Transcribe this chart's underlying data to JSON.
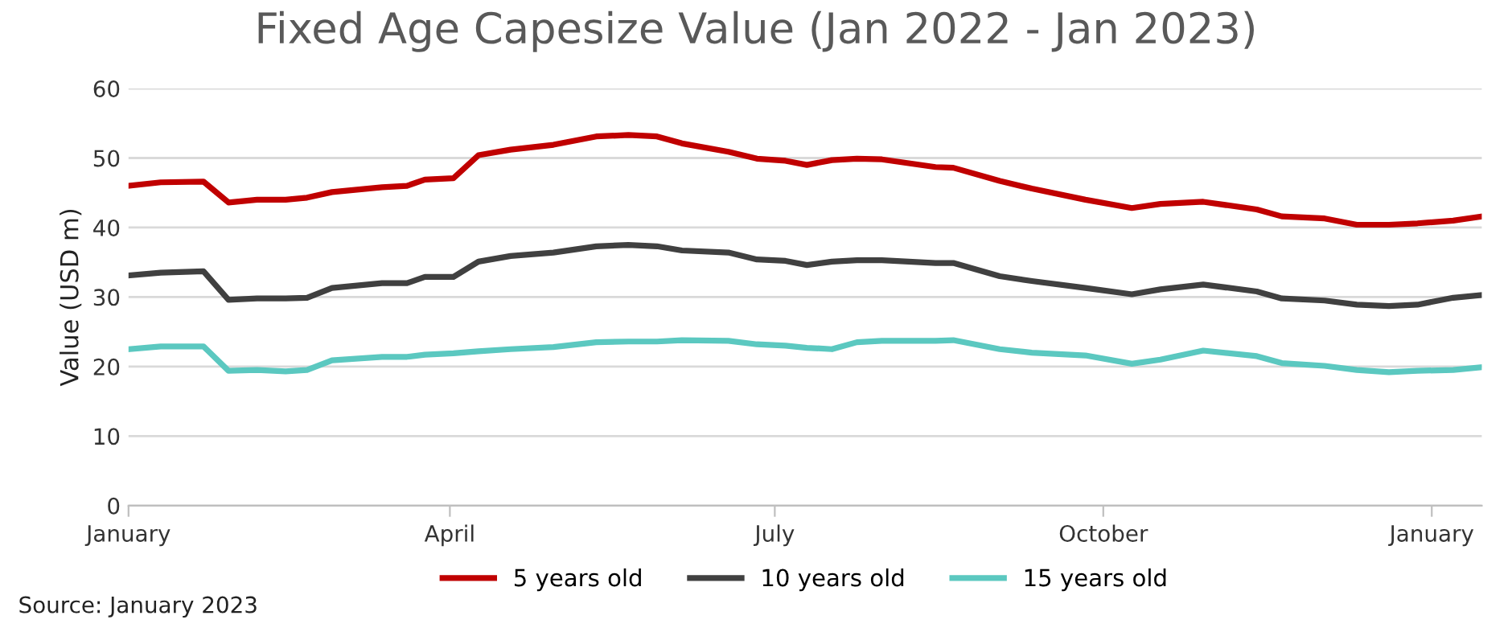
{
  "chart_data": {
    "type": "line",
    "title": "Fixed Age Capesize Value (Jan 2022 - Jan 2023)",
    "ylabel": "Value (USD m)",
    "x": [
      "2022-01-01",
      "2022-01-10",
      "2022-01-22",
      "2022-01-29",
      "2022-02-06",
      "2022-02-14",
      "2022-02-20",
      "2022-02-27",
      "2022-03-13",
      "2022-03-20",
      "2022-03-25",
      "2022-04-02",
      "2022-04-09",
      "2022-04-18",
      "2022-04-30",
      "2022-05-12",
      "2022-05-21",
      "2022-05-29",
      "2022-06-05",
      "2022-06-18",
      "2022-06-26",
      "2022-07-04",
      "2022-07-10",
      "2022-07-17",
      "2022-07-24",
      "2022-07-31",
      "2022-08-15",
      "2022-08-20",
      "2022-09-02",
      "2022-09-11",
      "2022-09-26",
      "2022-10-09",
      "2022-10-17",
      "2022-10-29",
      "2022-11-13",
      "2022-11-20",
      "2022-12-02",
      "2022-12-11",
      "2022-12-20",
      "2022-12-28",
      "2023-01-07",
      "2023-01-15"
    ],
    "series": [
      {
        "name": "5 years old",
        "color": "#c00000",
        "values": [
          46.0,
          46.5,
          46.6,
          43.6,
          44.0,
          44.0,
          44.3,
          45.1,
          45.8,
          46.0,
          46.9,
          47.1,
          50.4,
          51.2,
          51.9,
          53.1,
          53.3,
          53.1,
          52.1,
          50.9,
          49.9,
          49.6,
          49.0,
          49.7,
          49.9,
          49.8,
          48.7,
          48.6,
          46.7,
          45.6,
          44.0,
          42.8,
          43.4,
          43.7,
          42.6,
          41.6,
          41.3,
          40.4,
          40.4,
          40.6,
          41.0,
          41.6
        ]
      },
      {
        "name": "10 years old",
        "color": "#404040",
        "values": [
          33.1,
          33.5,
          33.7,
          29.6,
          29.8,
          29.8,
          29.9,
          31.3,
          32.0,
          32.0,
          32.9,
          32.9,
          35.1,
          35.9,
          36.4,
          37.3,
          37.5,
          37.3,
          36.7,
          36.4,
          35.4,
          35.2,
          34.6,
          35.1,
          35.3,
          35.3,
          34.9,
          34.9,
          33.0,
          32.3,
          31.3,
          30.4,
          31.1,
          31.8,
          30.8,
          29.8,
          29.5,
          28.9,
          28.7,
          28.9,
          29.9,
          30.3
        ]
      },
      {
        "name": "15 years old",
        "color": "#5bc8c0",
        "values": [
          22.5,
          22.9,
          22.9,
          19.4,
          19.5,
          19.3,
          19.5,
          20.9,
          21.4,
          21.4,
          21.7,
          21.9,
          22.2,
          22.5,
          22.8,
          23.5,
          23.6,
          23.6,
          23.8,
          23.7,
          23.2,
          23.0,
          22.7,
          22.5,
          23.5,
          23.7,
          23.7,
          23.8,
          22.5,
          22.0,
          21.6,
          20.4,
          21.0,
          22.3,
          21.5,
          20.5,
          20.1,
          19.5,
          19.2,
          19.4,
          19.5,
          19.9
        ]
      }
    ],
    "xlim": [
      "2022-01-01",
      "2023-01-15"
    ],
    "xticks": [
      {
        "value": "2022-01-01",
        "label": "January"
      },
      {
        "value": "2022-04-01",
        "label": "April"
      },
      {
        "value": "2022-07-01",
        "label": "July"
      },
      {
        "value": "2022-10-01",
        "label": "October"
      },
      {
        "value": "2023-01-01",
        "label": "January"
      }
    ],
    "ylim": [
      0,
      60
    ],
    "yticks": [
      0,
      10,
      20,
      30,
      40,
      50,
      60
    ],
    "grid": "y",
    "legend": "bottom",
    "marker": "none",
    "line_style": "solid",
    "annotations": [
      "Source: January 2023"
    ]
  }
}
